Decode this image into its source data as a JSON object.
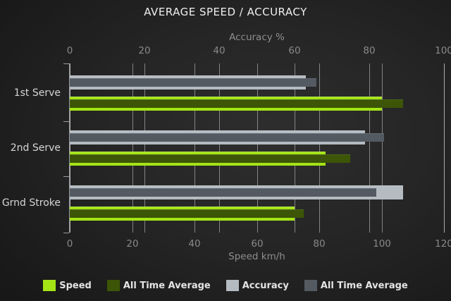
{
  "title": "AVERAGE SPEED / ACCURACY",
  "chart_data": {
    "type": "bar",
    "orientation": "horizontal",
    "grid": true,
    "legend_position": "bottom",
    "categories": [
      "1st Serve",
      "2nd Serve",
      "Grnd Stroke"
    ],
    "axes": {
      "top": {
        "label": "Accuracy %",
        "ticks": [
          0,
          20,
          40,
          60,
          80,
          100
        ],
        "max": 100
      },
      "bottom": {
        "label": "Speed km/h",
        "ticks": [
          0,
          20,
          40,
          60,
          80,
          100,
          120
        ],
        "max": 120
      }
    },
    "series": [
      {
        "name": "Speed",
        "axis": "bottom",
        "color": "#a4e416",
        "values": [
          100,
          82,
          72
        ]
      },
      {
        "name": "All Time Average",
        "axis": "bottom",
        "color": "#3c5506",
        "values": [
          107,
          90,
          75
        ]
      },
      {
        "name": "Accuracy",
        "axis": "top",
        "color": "#b4bbc1",
        "values": [
          63,
          79,
          89
        ]
      },
      {
        "name": "All Time Average",
        "axis": "top",
        "color": "#545a62",
        "values": [
          66,
          84,
          82
        ]
      }
    ]
  },
  "colors": {
    "background_center": "#2e2e2e",
    "background_edge": "#141414",
    "gridline": "#cdd0d4",
    "title_text": "#efefef",
    "axis_text": "#8a8a8a",
    "category_text": "#d6d6d6",
    "legend_text": "#e4e4e4"
  }
}
